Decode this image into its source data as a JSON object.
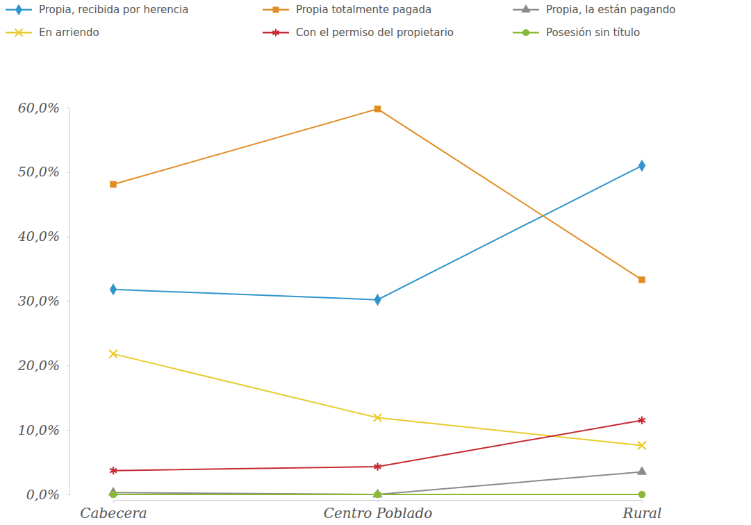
{
  "chart_data": {
    "type": "line",
    "categories": [
      "Cabecera",
      "Centro Poblado",
      "Rural"
    ],
    "ylim": [
      0,
      60
    ],
    "yticks": [
      {
        "value": 0,
        "label": "0,0%"
      },
      {
        "value": 10,
        "label": "10,0%"
      },
      {
        "value": 20,
        "label": "20,0%"
      },
      {
        "value": 30,
        "label": "30,0%"
      },
      {
        "value": 40,
        "label": "40,0%"
      },
      {
        "value": 50,
        "label": "50,0%"
      },
      {
        "value": 60,
        "label": "60,0%"
      }
    ],
    "grid": false,
    "legend": "top",
    "series": [
      {
        "name": "Propia, recibida por herencia",
        "color": "#2f95cc",
        "marker": "diamond",
        "values": [
          31.8,
          30.2,
          51.0
        ]
      },
      {
        "name": "Propia totalmente pagada",
        "color": "#e08c22",
        "marker": "square",
        "values": [
          48.1,
          59.8,
          33.3
        ]
      },
      {
        "name": "Propia, la están pagando",
        "color": "#8a8a8a",
        "marker": "triangle",
        "values": [
          0.3,
          0.0,
          3.5
        ]
      },
      {
        "name": "En arriendo",
        "color": "#e8cc2e",
        "marker": "x",
        "values": [
          21.8,
          11.9,
          7.6
        ]
      },
      {
        "name": "Con el permiso del propietario",
        "color": "#c42a30",
        "marker": "asterisk",
        "values": [
          3.7,
          4.3,
          11.5
        ]
      },
      {
        "name": "Posesión sin título",
        "color": "#8cb83a",
        "marker": "circle",
        "values": [
          0.0,
          0.0,
          0.0
        ]
      }
    ]
  }
}
